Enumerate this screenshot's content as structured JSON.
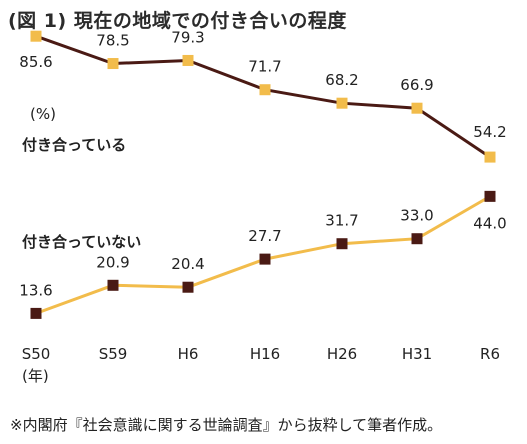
{
  "title": "(図 1) 現在の地域での付き合いの程度",
  "source": "※内閣府『社会意識に関する世論調査』から抜粋して筆者作成。",
  "unit_label": "(%)",
  "x_unit_label": "(年)",
  "colors": {
    "associated": "#4a1a14",
    "not_associated": "#f2bc4b"
  },
  "chart_data": {
    "type": "line",
    "title": "(図 1) 現在の地域での付き合いの程度",
    "xlabel": "",
    "ylabel": "(%)",
    "categories": [
      "S50",
      "S59",
      "H6",
      "H16",
      "H26",
      "H31",
      "R6"
    ],
    "ylim": [
      0,
      100
    ],
    "grid": false,
    "series": [
      {
        "name": "付き合っている",
        "values": [
          85.6,
          78.5,
          79.3,
          71.7,
          68.2,
          66.9,
          54.2
        ]
      },
      {
        "name": "付き合っていない",
        "values": [
          13.6,
          20.9,
          20.4,
          27.7,
          31.7,
          33.0,
          44.0
        ]
      }
    ]
  }
}
